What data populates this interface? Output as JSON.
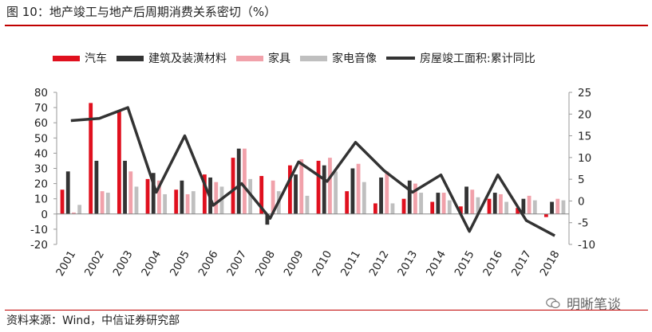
{
  "header": {
    "title": "图 10：地产竣工与地产后周期消费关系密切（%）"
  },
  "footer": {
    "source": "资料来源：Wind，中信证券研究部",
    "watermark": "明晰笔谈"
  },
  "colors": {
    "qiche": "#e0101e",
    "jianzhu": "#333333",
    "jiaju": "#f1a1aa",
    "jiadian": "#bfbfbf",
    "line": "#333333",
    "rule": "#c00000"
  },
  "chart_data": {
    "type": "bar",
    "categories": [
      "2001",
      "2002",
      "2003",
      "2004",
      "2005",
      "2006",
      "2007",
      "2008",
      "2009",
      "2010",
      "2011",
      "2012",
      "2013",
      "2014",
      "2015",
      "2016",
      "2017",
      "2018"
    ],
    "series": [
      {
        "name": "汽车",
        "axis": "left",
        "color": "#e0101e",
        "values": [
          16,
          73,
          68,
          23,
          16,
          26,
          37,
          25,
          32,
          35,
          15,
          7,
          10,
          8,
          5,
          10,
          4,
          -2
        ]
      },
      {
        "name": "建筑及装潢材料",
        "axis": "left",
        "color": "#333333",
        "values": [
          28,
          35,
          35,
          27,
          22,
          24,
          43,
          -7,
          26,
          32,
          30,
          24,
          22,
          14,
          18,
          14,
          10,
          8
        ]
      },
      {
        "name": "家具",
        "axis": "left",
        "color": "#f1a1aa",
        "values": [
          1,
          15,
          28,
          22,
          13,
          21,
          43,
          22,
          36,
          37,
          33,
          28,
          20,
          14,
          16,
          13,
          12,
          10
        ]
      },
      {
        "name": "家电音像",
        "axis": "left",
        "color": "#bfbfbf",
        "values": [
          6,
          14,
          18,
          13,
          15,
          18,
          23,
          15,
          12,
          28,
          21,
          7,
          14,
          9,
          11,
          8,
          9,
          9
        ]
      },
      {
        "name": "房屋竣工面积:累计同比",
        "axis": "right",
        "type": "line",
        "color": "#333333",
        "values": [
          18.5,
          19,
          21.5,
          2,
          15,
          -1,
          4,
          -4,
          9,
          4.5,
          13.5,
          7,
          2,
          6,
          -7,
          6,
          -4.5,
          -8
        ]
      }
    ],
    "ylim_left": [
      -20,
      80
    ],
    "yticks_left": [
      -20,
      -10,
      0,
      10,
      20,
      30,
      40,
      50,
      60,
      70,
      80
    ],
    "ylim_right": [
      -10,
      25
    ],
    "yticks_right": [
      -10,
      -5,
      0,
      5,
      10,
      15,
      20,
      25
    ],
    "grid": false,
    "legend_position": "top"
  }
}
